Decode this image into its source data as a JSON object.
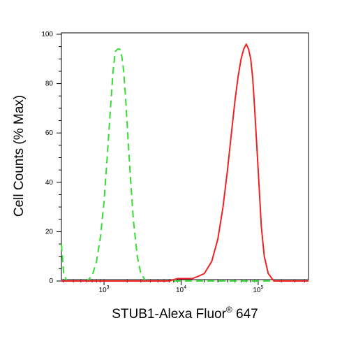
{
  "chart_data": {
    "type": "line",
    "title": "",
    "xlabel_main": "STUB1-Alexa Fluor",
    "xlabel_sup": "®",
    "xlabel_tail": " 647",
    "ylabel": "Cell Counts (% Max)",
    "x_scale": "log",
    "xlim": [
      280,
      450000
    ],
    "ylim": [
      0,
      100
    ],
    "y_ticks": [
      "0",
      "20",
      "40",
      "60",
      "80",
      "100"
    ],
    "x_ticks": [
      {
        "base": "10",
        "exp": "3",
        "value": 1000
      },
      {
        "base": "10",
        "exp": "4",
        "value": 10000
      },
      {
        "base": "10",
        "exp": "5",
        "value": 100000
      }
    ],
    "grid": false,
    "legend": "none",
    "series": [
      {
        "color": "#33dd33",
        "dash": "dashed",
        "points": [
          [
            280,
            15
          ],
          [
            300,
            3
          ],
          [
            330,
            0
          ],
          [
            600,
            0
          ],
          [
            700,
            2
          ],
          [
            800,
            8
          ],
          [
            900,
            18
          ],
          [
            1000,
            32
          ],
          [
            1100,
            50
          ],
          [
            1200,
            68
          ],
          [
            1300,
            84
          ],
          [
            1400,
            93
          ],
          [
            1500,
            94
          ],
          [
            1600,
            94
          ],
          [
            1700,
            91
          ],
          [
            1800,
            85
          ],
          [
            1900,
            75
          ],
          [
            2000,
            63
          ],
          [
            2200,
            42
          ],
          [
            2400,
            25
          ],
          [
            2700,
            10
          ],
          [
            3000,
            3
          ],
          [
            3500,
            0
          ],
          [
            450000,
            0
          ]
        ]
      },
      {
        "color": "#ee2222",
        "dash": "solid",
        "points": [
          [
            280,
            0
          ],
          [
            5000,
            0
          ],
          [
            7000,
            0
          ],
          [
            9000,
            1
          ],
          [
            11000,
            1
          ],
          [
            14000,
            1
          ],
          [
            17000,
            2
          ],
          [
            20000,
            3
          ],
          [
            25000,
            8
          ],
          [
            30000,
            17
          ],
          [
            35000,
            30
          ],
          [
            40000,
            45
          ],
          [
            45000,
            60
          ],
          [
            50000,
            73
          ],
          [
            55000,
            83
          ],
          [
            60000,
            90
          ],
          [
            65000,
            94
          ],
          [
            70000,
            96
          ],
          [
            75000,
            94
          ],
          [
            80000,
            90
          ],
          [
            85000,
            82
          ],
          [
            90000,
            70
          ],
          [
            100000,
            45
          ],
          [
            110000,
            22
          ],
          [
            120000,
            10
          ],
          [
            135000,
            3
          ],
          [
            160000,
            0
          ],
          [
            450000,
            0
          ]
        ]
      }
    ]
  }
}
